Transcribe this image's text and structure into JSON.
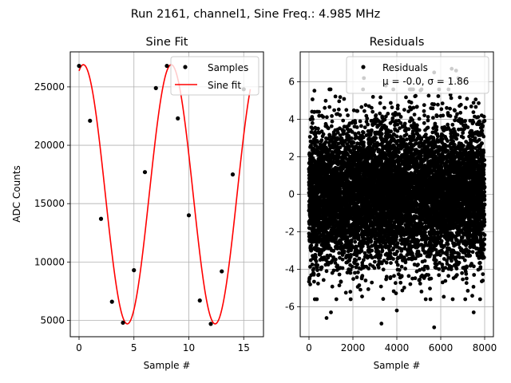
{
  "suptitle": "Run 2161, channel1, Sine Freq.: 4.985 MHz",
  "colors": {
    "fit": "#ff0000",
    "points": "#000000",
    "grid": "#b0b0b0"
  },
  "chart_data": [
    {
      "type": "line",
      "title": "Sine Fit",
      "xlabel": "Sample #",
      "ylabel": "ADC Counts",
      "xlim": [
        -0.8,
        16.8
      ],
      "ylim": [
        3600,
        28000
      ],
      "xticks": [
        0,
        5,
        10,
        15
      ],
      "yticks": [
        5000,
        10000,
        15000,
        20000,
        25000
      ],
      "grid": true,
      "legend_position": "upper-right",
      "legend": [
        "Samples",
        "Sine fit"
      ],
      "fit": {
        "offset": 15800,
        "amplitude": 11100,
        "period_samples": 8.0,
        "phase_rad": 1.26
      },
      "series": [
        {
          "name": "Samples",
          "x": [
            0,
            1,
            2,
            3,
            4,
            5,
            6,
            7,
            8,
            9,
            10,
            11,
            12,
            13,
            14,
            15
          ],
          "y": [
            26800,
            22100,
            13700,
            6600,
            4800,
            9300,
            17700,
            24900,
            26800,
            22300,
            14000,
            6700,
            4700,
            9200,
            17500,
            24800
          ]
        }
      ]
    },
    {
      "type": "scatter",
      "title": "Residuals",
      "xlabel": "Sample #",
      "ylabel": "",
      "xlim": [
        -400,
        8400
      ],
      "ylim": [
        -7.6,
        7.6
      ],
      "xticks": [
        0,
        2000,
        4000,
        6000,
        8000
      ],
      "yticks": [
        -6,
        -4,
        -2,
        0,
        2,
        4,
        6
      ],
      "grid": true,
      "legend_position": "upper-right",
      "legend": [
        "Residuals",
        "μ = -0.0, σ = 1.86"
      ],
      "n_points": 8000,
      "mean": 0.0,
      "std": 1.86,
      "series": [
        {
          "name": "Residuals (extreme points)",
          "x": [
            2500,
            3500,
            5700,
            6500,
            6700,
            6800,
            800,
            1000,
            3300,
            5700,
            4000,
            7500
          ],
          "y": [
            6.2,
            5.8,
            6.5,
            6.7,
            6.6,
            6.2,
            -6.6,
            -6.3,
            -6.9,
            -7.1,
            -6.2,
            -6.3
          ]
        }
      ]
    }
  ]
}
